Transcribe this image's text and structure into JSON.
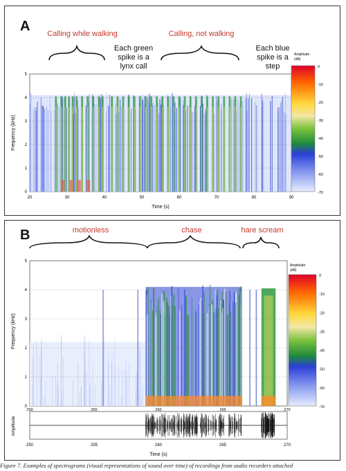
{
  "panel_a": {
    "letter": "A",
    "annotations": {
      "calling_walking": "Calling while walking",
      "green_spike": [
        "Each green",
        "spike is a",
        "lynx call"
      ],
      "calling_not_walking": "Calling, not walking",
      "blue_spike": [
        "Each blue",
        "spike is a",
        "step"
      ]
    },
    "ylabel": "Frequency (kHz)",
    "xlabel": "Time (s)",
    "yticks": [
      "0",
      "1",
      "2",
      "3",
      "4",
      "5"
    ],
    "xticks": [
      "20",
      "30",
      "40",
      "50",
      "60",
      "70",
      "80",
      "90"
    ],
    "colorbar_title": [
      "Amplitude",
      "(dB)"
    ],
    "colorbar_ticks": [
      "0",
      "-10",
      "-20",
      "-30",
      "-40",
      "-50",
      "-60",
      "-70"
    ]
  },
  "panel_b": {
    "letter": "B",
    "annotations": {
      "motionless": "motionless",
      "chase": "chase",
      "hare_scream": "hare scream"
    },
    "ylabel": "Frequency (kHz)",
    "amp_label": "Amplitude",
    "xlabel": "Time (s)",
    "yticks": [
      "0",
      "1",
      "2",
      "3",
      "4",
      "5"
    ],
    "xticks": [
      "250",
      "255",
      "260",
      "265",
      "270"
    ],
    "colorbar_title": [
      "Amplitude",
      "(dB)"
    ],
    "colorbar_ticks": [
      "0",
      "-10",
      "-20",
      "-30",
      "-40",
      "-50",
      "-60",
      "-70"
    ]
  },
  "caption": "Figure 7. Examples of spectrograms (visual representations of sound over time) of recordings from audio recorders attached",
  "colors": {
    "annotation_red": "#c0392b",
    "colorbar": [
      "#e0002a",
      "#ff6a00",
      "#ffd83c",
      "#f3e7a6",
      "#7cc23d",
      "#1f8a3c",
      "#2b3fd6",
      "#8a9bf0",
      "#e6ecff"
    ]
  }
}
